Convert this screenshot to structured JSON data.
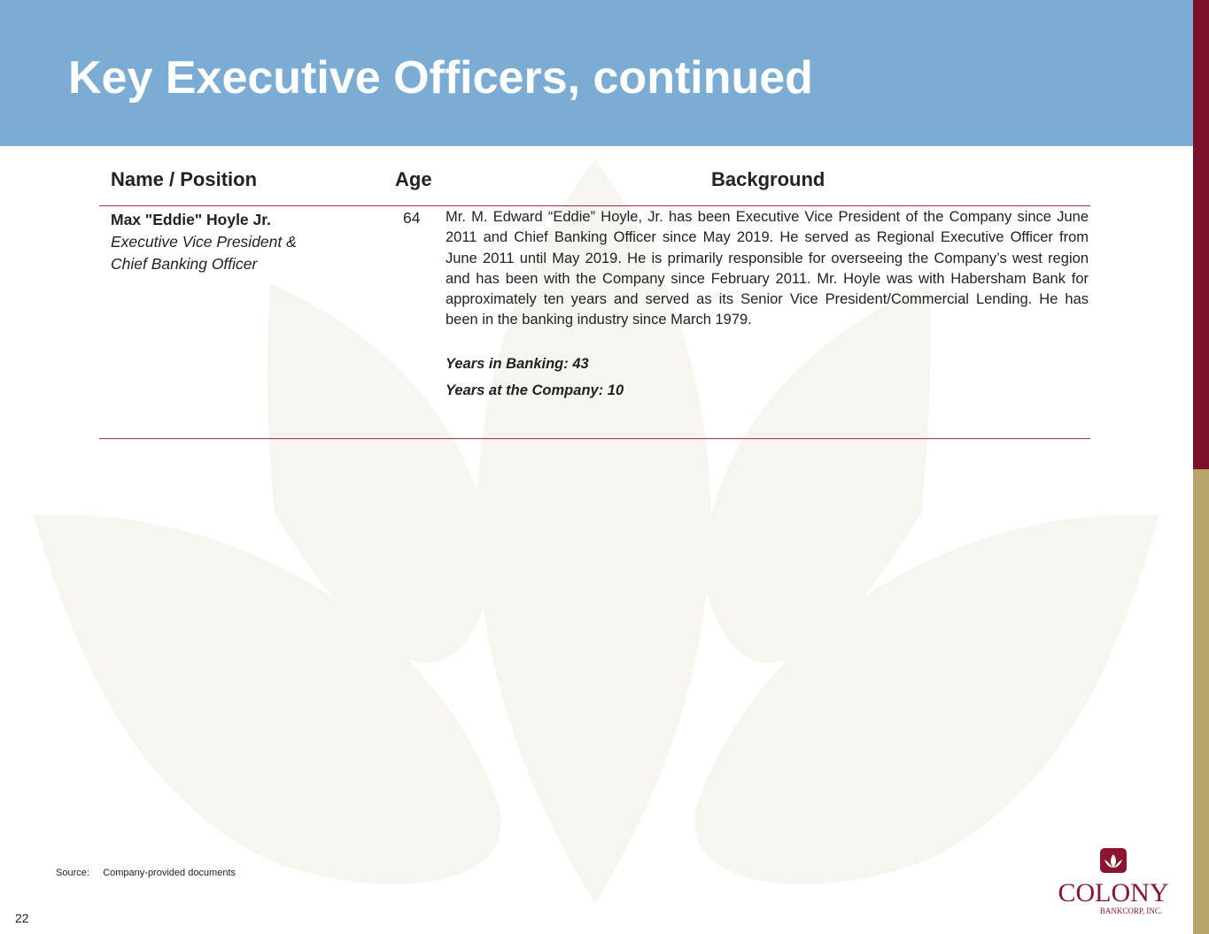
{
  "title": "Key Executive Officers, continued",
  "columns": {
    "name": "Name / Position",
    "age": "Age",
    "background": "Background"
  },
  "officer": {
    "name": "Max \"Eddie\" Hoyle Jr.",
    "position_line1": "Executive Vice President &",
    "position_line2": "Chief Banking Officer",
    "age": "64",
    "background": "Mr. M. Edward “Eddie” Hoyle, Jr. has been Executive Vice President of the Company since June 2011 and Chief Banking Officer since May 2019. He served as Regional Executive Officer from June 2011 until May 2019. He is primarily responsible for overseeing the Company’s west region and has been with the Company since February 2011. Mr. Hoyle was with Habersham Bank for approximately ten years and served as its Senior Vice President/Commercial Lending. He has been in the banking industry since March 1979.",
    "years_banking": "Years in Banking:  43",
    "years_company": "Years at the Company: 10"
  },
  "source_label": "Source:",
  "source_text": "Company-provided documents",
  "page_number": "22",
  "logo": {
    "name": "COLONY",
    "sub": "BANKCORP, INC."
  },
  "colors": {
    "header": "#7bacd3",
    "accent": "#7a0f2a",
    "gold": "#b8a46c"
  }
}
